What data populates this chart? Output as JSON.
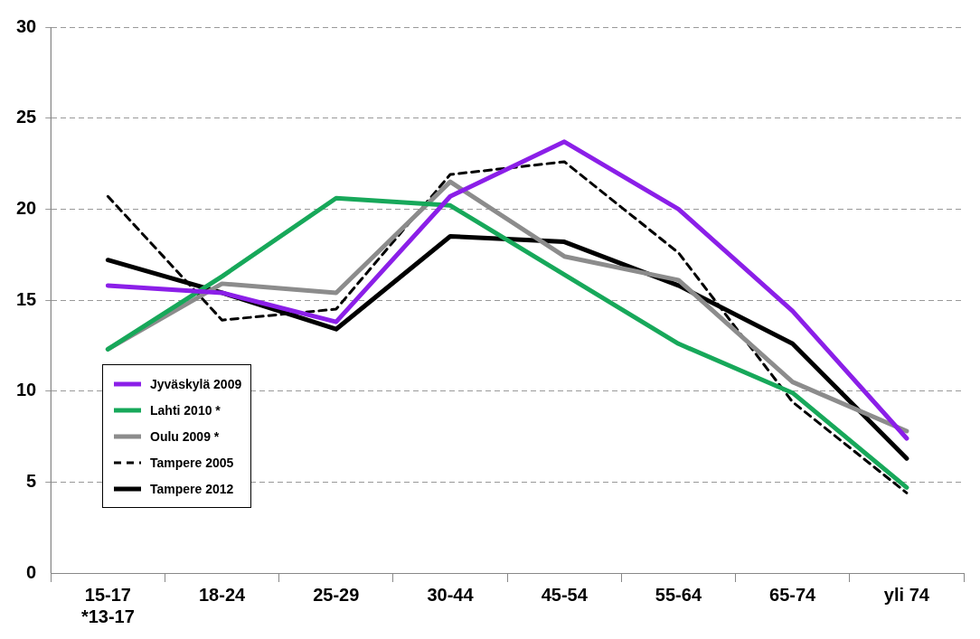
{
  "chart_data": {
    "type": "line",
    "categories": [
      "15-17\n*13-17",
      "18-24",
      "25-29",
      "30-44",
      "45-54",
      "55-64",
      "65-74",
      "yli 74"
    ],
    "ylim": [
      0,
      30
    ],
    "yticks": [
      0,
      5,
      10,
      15,
      20,
      25,
      30
    ],
    "grid": "y",
    "legend": "left",
    "marker": "none",
    "series": [
      {
        "name": "Jyväskylä 2009",
        "color": "#8b1fe8",
        "values": [
          15.8,
          15.4,
          13.8,
          20.7,
          23.7,
          20.0,
          14.4,
          7.4
        ]
      },
      {
        "name": "Lahti 2010 *",
        "color": "#17a85a",
        "values": [
          12.3,
          16.3,
          20.6,
          20.2,
          16.4,
          12.6,
          9.9,
          4.7
        ]
      },
      {
        "name": "Oulu 2009 *",
        "color": "#8c8c8c",
        "values": [
          12.3,
          15.9,
          15.4,
          21.5,
          17.4,
          16.1,
          10.5,
          7.8
        ]
      },
      {
        "name": "Tampere 2005",
        "color": "#000000",
        "line_style": "dashed",
        "values": [
          20.7,
          13.9,
          14.5,
          21.9,
          22.6,
          17.6,
          9.4,
          4.4
        ]
      },
      {
        "name": "Tampere 2012",
        "color": "#000000",
        "values": [
          17.2,
          15.4,
          13.4,
          18.5,
          18.2,
          15.8,
          12.6,
          6.3
        ]
      }
    ]
  }
}
